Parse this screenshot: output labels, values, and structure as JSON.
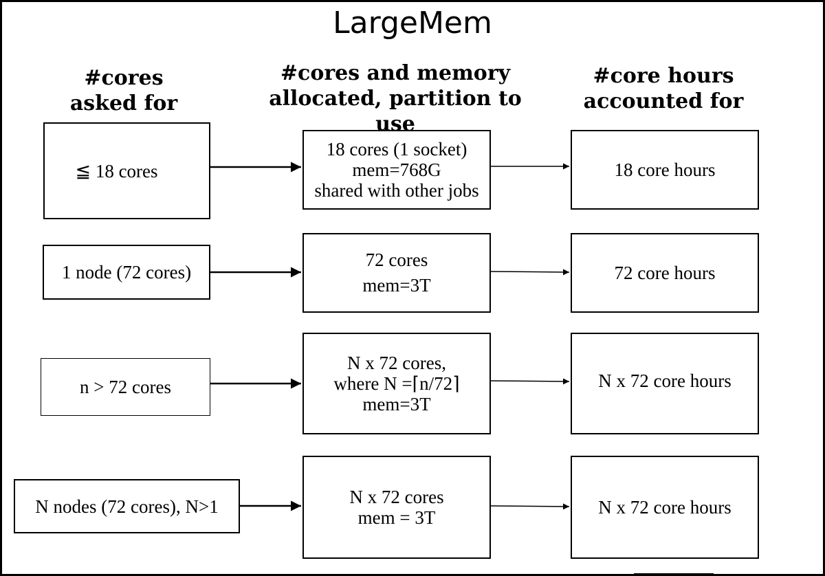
{
  "title": "LargeMem",
  "headers": {
    "requested": [
      "#cores",
      "asked for"
    ],
    "allocated": [
      "#cores and memory",
      "allocated, partition to use"
    ],
    "accounted": [
      "#core hours",
      "accounted for"
    ]
  },
  "rows": [
    {
      "requested": [
        "≦ 18 cores"
      ],
      "allocated": [
        "18 cores (1 socket)",
        "mem=768G",
        "shared with other jobs"
      ],
      "accounted": [
        "18 core hours"
      ]
    },
    {
      "requested": [
        "1 node (72 cores)"
      ],
      "allocated": [
        "72 cores",
        "mem=3T"
      ],
      "accounted": [
        "72 core hours"
      ]
    },
    {
      "requested": [
        "n > 72 cores"
      ],
      "allocated": [
        "N x 72 cores,",
        "where N =⌈n/72⌉",
        "mem=3T"
      ],
      "accounted": [
        "N x 72 core hours"
      ]
    },
    {
      "requested": [
        "N nodes (72 cores), N>1"
      ],
      "allocated": [
        "N x 72 cores",
        "mem = 3T"
      ],
      "accounted": [
        "N x 72 core hours"
      ]
    }
  ]
}
